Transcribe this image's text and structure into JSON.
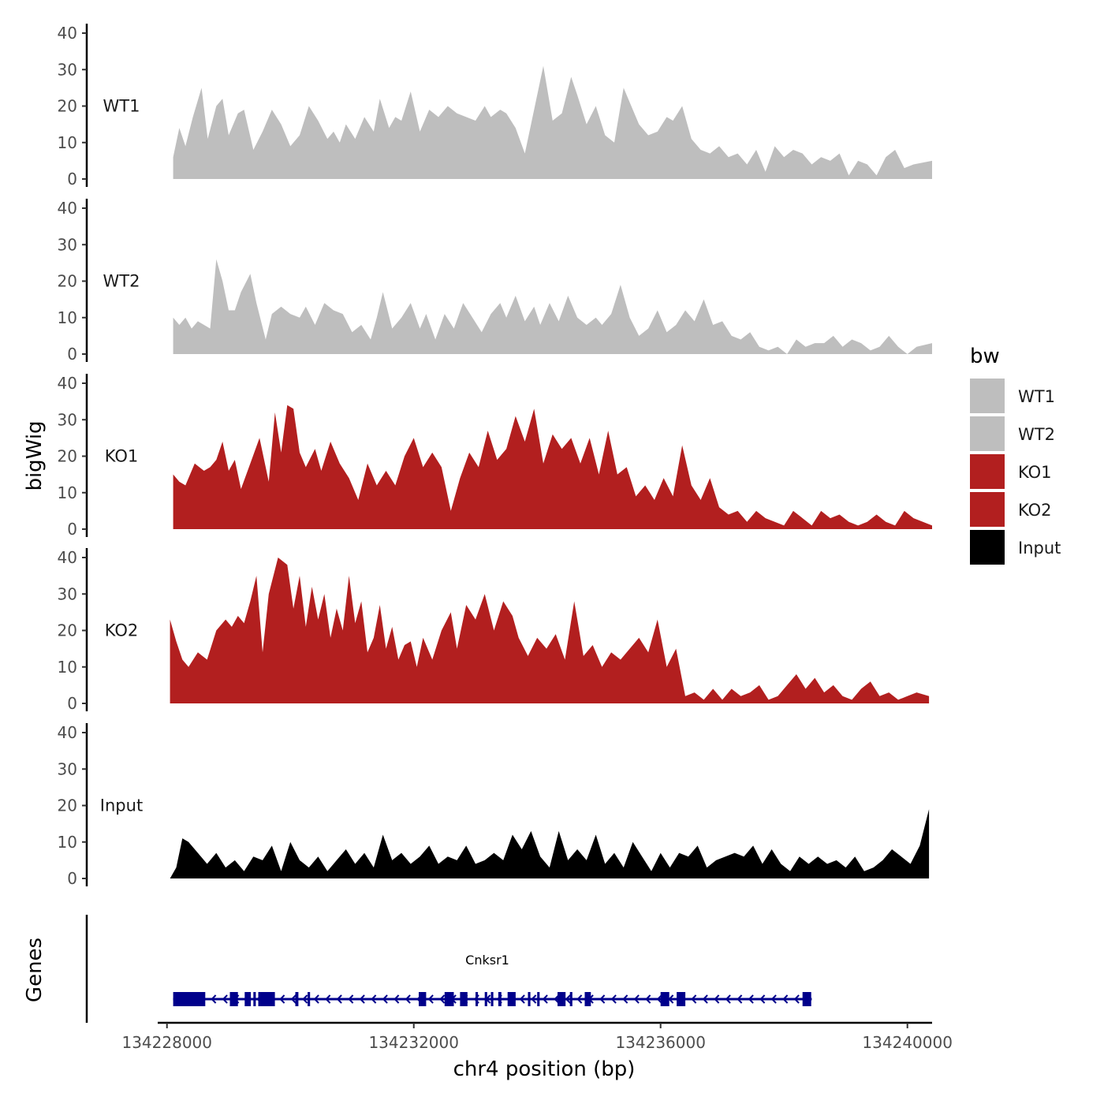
{
  "chart_data": {
    "type": "area",
    "xlabel": "chr4 position (bp)",
    "ylabel": "bigWig",
    "xlim": [
      134227850,
      134240400
    ],
    "ylim": [
      0,
      42
    ],
    "yticks": [
      0,
      10,
      20,
      30,
      40
    ],
    "xticks": [
      134228000,
      134232000,
      134236000,
      134240000
    ],
    "xtick_labels": [
      "134228000",
      "134232000",
      "134236000",
      "134240000"
    ],
    "legend": {
      "title": "bw",
      "position": "right",
      "entries": [
        {
          "label": "WT1",
          "color": "#bebebe"
        },
        {
          "label": "WT2",
          "color": "#bebebe"
        },
        {
          "label": "KO1",
          "color": "#b21f1f"
        },
        {
          "label": "KO2",
          "color": "#b21f1f"
        },
        {
          "label": "Input",
          "color": "#000000"
        }
      ]
    },
    "tracks": [
      {
        "name": "WT1",
        "color": "#bebebe",
        "x": [
          134228100,
          134228200,
          134228300,
          134228420,
          134228560,
          134228660,
          134228800,
          134228900,
          134229000,
          134229150,
          134229250,
          134229400,
          134229550,
          134229700,
          134229850,
          134230000,
          134230150,
          134230300,
          134230450,
          134230600,
          134230700,
          134230800,
          134230900,
          134231050,
          134231200,
          134231350,
          134231450,
          134231600,
          134231700,
          134231800,
          134231950,
          134232100,
          134232250,
          134232400,
          134232550,
          134232700,
          134232850,
          134233000,
          134233150,
          134233250,
          134233400,
          134233500,
          134233650,
          134233800,
          134233950,
          134234100,
          134234250,
          134234400,
          134234550,
          134234650,
          134234800,
          134234950,
          134235100,
          134235250,
          134235400,
          134235500,
          134235650,
          134235800,
          134235950,
          134236100,
          134236200,
          134236350,
          134236500,
          134236650,
          134236800,
          134236950,
          134237100,
          134237250,
          134237400,
          134237550,
          134237700,
          134237850,
          134238000,
          134238150,
          134238300,
          134238450,
          134238600,
          134238750,
          134238900,
          134239050,
          134239200,
          134239350,
          134239500,
          134239650,
          134239800,
          134239950,
          134240100,
          134240400
        ],
        "y": [
          6,
          14,
          9,
          17,
          25,
          11,
          20,
          22,
          12,
          18,
          19,
          8,
          13,
          19,
          15,
          9,
          12,
          20,
          16,
          11,
          13,
          10,
          15,
          11,
          17,
          13,
          22,
          14,
          17,
          16,
          24,
          13,
          19,
          17,
          20,
          18,
          17,
          16,
          20,
          17,
          19,
          18,
          14,
          7,
          19,
          31,
          16,
          18,
          28,
          23,
          15,
          20,
          12,
          10,
          25,
          21,
          15,
          12,
          13,
          17,
          16,
          20,
          11,
          8,
          7,
          9,
          6,
          7,
          4,
          8,
          2,
          9,
          6,
          8,
          7,
          4,
          6,
          5,
          7,
          1,
          5,
          4,
          1,
          6,
          8,
          3,
          4,
          5
        ]
      },
      {
        "name": "WT2",
        "color": "#bebebe",
        "x": [
          134228100,
          134228200,
          134228300,
          134228400,
          134228500,
          134228600,
          134228700,
          134228800,
          134228900,
          134229000,
          134229100,
          134229200,
          134229350,
          134229450,
          134229600,
          134229700,
          134229850,
          134230000,
          134230150,
          134230250,
          134230400,
          134230550,
          134230700,
          134230850,
          134231000,
          134231150,
          134231300,
          134231400,
          134231500,
          134231650,
          134231800,
          134231950,
          134232100,
          134232200,
          134232350,
          134232500,
          134232650,
          134232800,
          134232950,
          134233100,
          134233250,
          134233400,
          134233500,
          134233650,
          134233800,
          134233950,
          134234050,
          134234200,
          134234350,
          134234500,
          134234650,
          134234800,
          134234950,
          134235050,
          134235200,
          134235350,
          134235500,
          134235650,
          134235800,
          134235950,
          134236100,
          134236250,
          134236400,
          134236550,
          134236700,
          134236850,
          134237000,
          134237150,
          134237300,
          134237450,
          134237600,
          134237750,
          134237900,
          134238050,
          134238200,
          134238350,
          134238500,
          134238650,
          134238800,
          134238950,
          134239100,
          134239250,
          134239400,
          134239550,
          134239700,
          134239850,
          134240000,
          134240150,
          134240400
        ],
        "y": [
          10,
          8,
          10,
          7,
          9,
          8,
          7,
          26,
          20,
          12,
          12,
          17,
          22,
          14,
          4,
          11,
          13,
          11,
          10,
          13,
          8,
          14,
          12,
          11,
          6,
          8,
          4,
          10,
          17,
          7,
          10,
          14,
          7,
          11,
          4,
          11,
          7,
          14,
          10,
          6,
          11,
          14,
          10,
          16,
          9,
          13,
          8,
          14,
          9,
          16,
          10,
          8,
          10,
          8,
          11,
          19,
          10,
          5,
          7,
          12,
          6,
          8,
          12,
          9,
          15,
          8,
          9,
          5,
          4,
          6,
          2,
          1,
          2,
          0,
          4,
          2,
          3,
          3,
          5,
          2,
          4,
          3,
          1,
          2,
          5,
          2,
          0,
          2,
          3
        ]
      },
      {
        "name": "KO1",
        "color": "#b21f1f",
        "x": [
          134228100,
          134228200,
          134228300,
          134228450,
          134228600,
          134228700,
          134228800,
          134228900,
          134229000,
          134229100,
          134229200,
          134229350,
          134229500,
          134229650,
          134229750,
          134229850,
          134229950,
          134230050,
          134230150,
          134230250,
          134230400,
          134230500,
          134230650,
          134230800,
          134230950,
          134231100,
          134231250,
          134231400,
          134231550,
          134231700,
          134231850,
          134232000,
          134232150,
          134232300,
          134232450,
          134232600,
          134232750,
          134232900,
          134233050,
          134233200,
          134233350,
          134233500,
          134233650,
          134233800,
          134233950,
          134234100,
          134234250,
          134234400,
          134234550,
          134234700,
          134234850,
          134235000,
          134235150,
          134235300,
          134235450,
          134235600,
          134235750,
          134235900,
          134236050,
          134236200,
          134236350,
          134236500,
          134236650,
          134236800,
          134236950,
          134237100,
          134237250,
          134237400,
          134237550,
          134237700,
          134237850,
          134238000,
          134238150,
          134238300,
          134238450,
          134238600,
          134238750,
          134238900,
          134239050,
          134239200,
          134239350,
          134239500,
          134239650,
          134239800,
          134239950,
          134240100,
          134240250,
          134240400
        ],
        "y": [
          15,
          13,
          12,
          18,
          16,
          17,
          19,
          24,
          16,
          19,
          11,
          18,
          25,
          13,
          32,
          21,
          34,
          33,
          21,
          17,
          22,
          16,
          24,
          18,
          14,
          8,
          18,
          12,
          16,
          12,
          20,
          25,
          17,
          21,
          17,
          5,
          14,
          21,
          17,
          27,
          19,
          22,
          31,
          24,
          33,
          18,
          26,
          22,
          25,
          18,
          25,
          15,
          27,
          15,
          17,
          9,
          12,
          8,
          14,
          9,
          23,
          12,
          8,
          14,
          6,
          4,
          5,
          2,
          5,
          3,
          2,
          1,
          5,
          3,
          1,
          5,
          3,
          4,
          2,
          1,
          2,
          4,
          2,
          1,
          5,
          3,
          2,
          1
        ]
      },
      {
        "name": "KO2",
        "color": "#b21f1f",
        "x": [
          134228050,
          134228150,
          134228250,
          134228350,
          134228500,
          134228650,
          134228800,
          134228950,
          134229050,
          134229150,
          134229250,
          134229350,
          134229450,
          134229550,
          134229650,
          134229800,
          134229950,
          134230050,
          134230150,
          134230250,
          134230350,
          134230450,
          134230550,
          134230650,
          134230750,
          134230850,
          134230950,
          134231050,
          134231150,
          134231250,
          134231350,
          134231450,
          134231550,
          134231650,
          134231750,
          134231850,
          134231950,
          134232050,
          134232150,
          134232300,
          134232450,
          134232600,
          134232700,
          134232850,
          134233000,
          134233150,
          134233300,
          134233450,
          134233600,
          134233700,
          134233850,
          134234000,
          134234150,
          134234300,
          134234450,
          134234600,
          134234750,
          134234900,
          134235050,
          134235200,
          134235350,
          134235500,
          134235650,
          134235800,
          134235950,
          134236100,
          134236250,
          134236400,
          134236550,
          134236700,
          134236850,
          134237000,
          134237150,
          134237300,
          134237450,
          134237600,
          134237750,
          134237900,
          134238050,
          134238200,
          134238350,
          134238500,
          134238650,
          134238800,
          134238950,
          134239100,
          134239250,
          134239400,
          134239550,
          134239700,
          134239850,
          134240000,
          134240150,
          134240350
        ],
        "y": [
          23,
          17,
          12,
          10,
          14,
          12,
          20,
          23,
          21,
          24,
          22,
          28,
          35,
          14,
          30,
          40,
          38,
          26,
          35,
          21,
          32,
          23,
          30,
          18,
          26,
          20,
          35,
          22,
          28,
          14,
          18,
          27,
          15,
          21,
          12,
          16,
          17,
          10,
          18,
          12,
          20,
          25,
          15,
          27,
          23,
          30,
          20,
          28,
          24,
          18,
          13,
          18,
          15,
          19,
          12,
          28,
          13,
          16,
          10,
          14,
          12,
          15,
          18,
          14,
          23,
          10,
          15,
          2,
          3,
          1,
          4,
          1,
          4,
          2,
          3,
          5,
          1,
          2,
          5,
          8,
          4,
          7,
          3,
          5,
          2,
          1,
          4,
          6,
          2,
          3,
          1,
          2,
          3,
          2
        ]
      },
      {
        "name": "Input",
        "color": "#000000",
        "x": [
          134228050,
          134228150,
          134228250,
          134228350,
          134228500,
          134228650,
          134228800,
          134228950,
          134229100,
          134229250,
          134229400,
          134229550,
          134229700,
          134229850,
          134230000,
          134230150,
          134230300,
          134230450,
          134230600,
          134230750,
          134230900,
          134231050,
          134231200,
          134231350,
          134231500,
          134231650,
          134231800,
          134231950,
          134232100,
          134232250,
          134232400,
          134232550,
          134232700,
          134232850,
          134233000,
          134233150,
          134233300,
          134233450,
          134233600,
          134233750,
          134233900,
          134234050,
          134234200,
          134234350,
          134234500,
          134234650,
          134234800,
          134234950,
          134235100,
          134235250,
          134235400,
          134235550,
          134235700,
          134235850,
          134236000,
          134236150,
          134236300,
          134236450,
          134236600,
          134236750,
          134236900,
          134237050,
          134237200,
          134237350,
          134237500,
          134237650,
          134237800,
          134237950,
          134238100,
          134238250,
          134238400,
          134238550,
          134238700,
          134238850,
          134239000,
          134239150,
          134239300,
          134239450,
          134239600,
          134239750,
          134239900,
          134240050,
          134240200,
          134240350
        ],
        "y": [
          0,
          3,
          11,
          10,
          7,
          4,
          7,
          3,
          5,
          2,
          6,
          5,
          9,
          2,
          10,
          5,
          3,
          6,
          2,
          5,
          8,
          4,
          7,
          3,
          12,
          5,
          7,
          4,
          6,
          9,
          4,
          6,
          5,
          9,
          4,
          5,
          7,
          5,
          12,
          8,
          13,
          6,
          3,
          13,
          5,
          8,
          5,
          12,
          4,
          7,
          3,
          10,
          6,
          2,
          7,
          3,
          7,
          6,
          9,
          3,
          5,
          6,
          7,
          6,
          9,
          4,
          8,
          4,
          2,
          6,
          4,
          6,
          4,
          5,
          3,
          6,
          2,
          3,
          5,
          8,
          6,
          4,
          9,
          19
        ]
      }
    ],
    "genes": {
      "label": "Genes",
      "gene_name": "Cnksr1",
      "color": "#00008b",
      "strand": "-",
      "start": 134228100,
      "end": 134238450,
      "exons": [
        [
          134228100,
          134228620
        ],
        [
          134229020,
          134229150
        ],
        [
          134229260,
          134229360
        ],
        [
          134229400,
          134229440
        ],
        [
          134229480,
          134229750
        ],
        [
          134230080,
          134230130
        ],
        [
          134230280,
          134230320
        ],
        [
          134232080,
          134232200
        ],
        [
          134232500,
          134232650
        ],
        [
          134232750,
          134232870
        ],
        [
          134233000,
          134233040
        ],
        [
          134233150,
          134233190
        ],
        [
          134233250,
          134233290
        ],
        [
          134233370,
          134233420
        ],
        [
          134233520,
          134233650
        ],
        [
          134233850,
          134233890
        ],
        [
          134234000,
          134234040
        ],
        [
          134234330,
          134234460
        ],
        [
          134234530,
          134234570
        ],
        [
          134234770,
          134234870
        ],
        [
          134236000,
          134236140
        ],
        [
          134236260,
          134236400
        ],
        [
          134238300,
          134238440
        ]
      ]
    }
  }
}
